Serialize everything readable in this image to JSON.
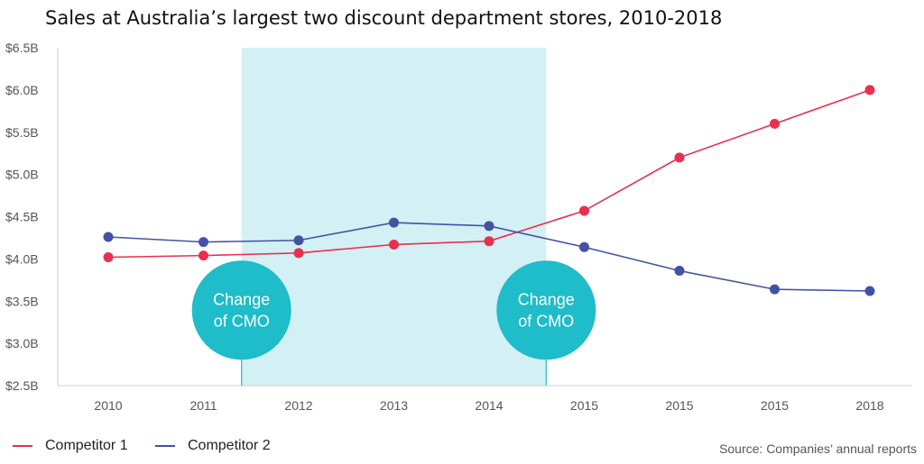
{
  "chart_data": {
    "type": "line",
    "title": "Sales at Australia’s largest two discount department stores, 2010-2018",
    "categories": [
      "2010",
      "2011",
      "2012",
      "2013",
      "2014",
      "2015",
      "2015",
      "2015",
      "2018"
    ],
    "y_tick_labels": [
      "$2.5B",
      "$3.0B",
      "$3.5B",
      "$4.0B",
      "$4.5B",
      "$5.0B",
      "$5.5B",
      "$6.0B",
      "$6.5B"
    ],
    "ylim": [
      2.5,
      6.5
    ],
    "yticks": [
      2.5,
      3.0,
      3.5,
      4.0,
      4.5,
      5.0,
      5.5,
      6.0,
      6.5
    ],
    "grid": false,
    "legend_position": "bottom-left",
    "series": [
      {
        "name": "Competitor 1",
        "color": "#e8304f",
        "values": [
          4.02,
          4.04,
          4.07,
          4.17,
          4.21,
          4.57,
          5.2,
          5.6,
          6.0
        ]
      },
      {
        "name": "Competitor 2",
        "color": "#4352a3",
        "values": [
          4.26,
          4.2,
          4.22,
          4.43,
          4.39,
          4.14,
          3.86,
          3.64,
          3.62
        ]
      }
    ],
    "highlight_region": {
      "x_from": 1.4,
      "x_to": 4.6,
      "color": "#d3f0f4"
    },
    "annotations": [
      {
        "text_line1": "Change",
        "text_line2": "of CMO",
        "x": 1.4,
        "y": 3.5,
        "color": "#1fbcc9"
      },
      {
        "text_line1": "Change",
        "text_line2": "of CMO",
        "x": 4.6,
        "y": 3.5,
        "color": "#1fbcc9"
      }
    ]
  },
  "source": "Source: Companies’ annual reports"
}
